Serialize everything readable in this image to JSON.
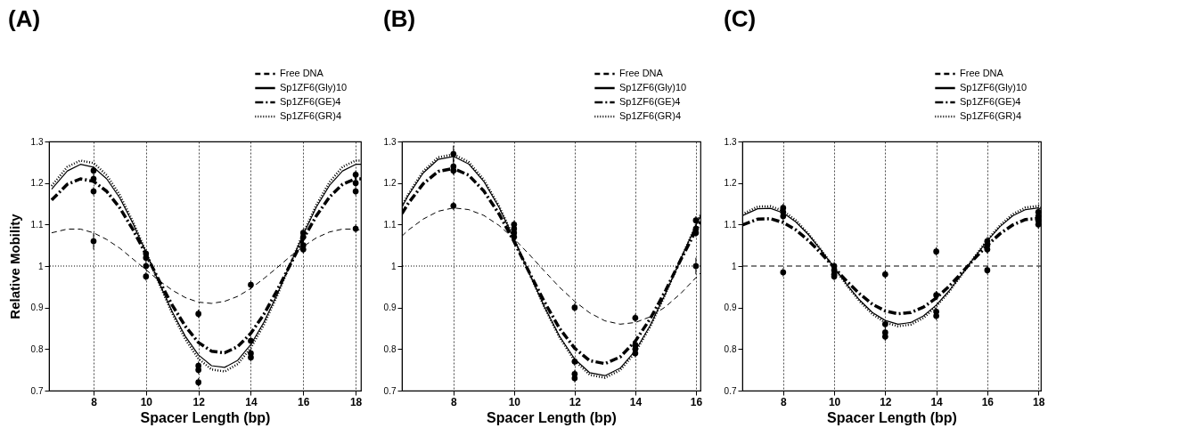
{
  "chart_data": [
    {
      "type": "scatter",
      "title": "(A)",
      "xlabel": "Spacer Length (bp)",
      "ylabel": "Relative Mobility",
      "xlim": [
        6.3,
        18.2
      ],
      "ylim": [
        0.7,
        1.3
      ],
      "xticks": [
        8,
        10,
        12,
        14,
        16,
        18
      ],
      "yticks": [
        0.7,
        0.8,
        0.9,
        1,
        1.1,
        1.2,
        1.3
      ],
      "grid": "x",
      "legend": "top right",
      "ref_lines": [
        {
          "axis": "y",
          "value": 1,
          "line_style": "dotted"
        }
      ],
      "series": [
        {
          "name": "Free DNA",
          "type": "scatter",
          "marker": "circle",
          "color": "#000000",
          "x": [
            8,
            10,
            12,
            14,
            16,
            18
          ],
          "values": [
            1.06,
            0.975,
            0.885,
            0.955,
            1.04,
            1.09
          ],
          "errors": [
            0.02,
            0.01,
            0.01,
            0.01,
            0.01,
            0.01
          ]
        },
        {
          "name": "Sp1ZF6(Gly)10",
          "type": "scatter",
          "marker": "circle",
          "color": "#000000",
          "x": [
            8,
            10,
            12,
            14,
            16,
            18
          ],
          "values": [
            1.23,
            1.03,
            0.75,
            0.82,
            1.07,
            1.22
          ],
          "errors": [
            0.01,
            0.01,
            0.01,
            0.01,
            0.01,
            0.01
          ]
        },
        {
          "name": "Sp1ZF6(GE)4",
          "type": "scatter",
          "marker": "circle",
          "color": "#000000",
          "x": [
            8,
            10,
            12,
            14,
            16,
            18
          ],
          "values": [
            1.21,
            1.02,
            0.72,
            0.79,
            1.05,
            1.2
          ],
          "errors": [
            0.01,
            0.01,
            0.01,
            0.01,
            0.01,
            0.01
          ]
        },
        {
          "name": "Sp1ZF6(GR)4",
          "type": "scatter",
          "marker": "circle",
          "color": "#000000",
          "x": [
            8,
            10,
            12,
            14,
            16,
            18
          ],
          "values": [
            1.18,
            1.0,
            0.76,
            0.78,
            1.08,
            1.18
          ],
          "errors": [
            0.01,
            0.01,
            0.01,
            0.01,
            0.01,
            0.01
          ]
        },
        {
          "type": "line",
          "marker": "none",
          "line_style": "dashed",
          "color": "#000000",
          "x": [
            6.4,
            7,
            7.5,
            8,
            8.5,
            9,
            9.5,
            10,
            10.5,
            11,
            11.5,
            12,
            12.5,
            13,
            13.5,
            14,
            14.5,
            15,
            15.5,
            16,
            16.5,
            17,
            17.5,
            18,
            18.2
          ],
          "values": [
            1.08,
            1.089,
            1.089,
            1.08,
            1.064,
            1.043,
            1.017,
            0.991,
            0.965,
            0.942,
            0.924,
            0.913,
            0.91,
            0.915,
            0.927,
            0.946,
            0.97,
            0.996,
            1.023,
            1.047,
            1.068,
            1.082,
            1.089,
            1.089,
            1.086
          ]
        },
        {
          "type": "line",
          "marker": "none",
          "line_style": "solid",
          "color": "#000000",
          "x": [
            6.4,
            7,
            7.5,
            8,
            8.5,
            9,
            9.5,
            10,
            10.5,
            11,
            11.5,
            12,
            12.5,
            13,
            13.5,
            14,
            14.5,
            15,
            15.5,
            16,
            16.5,
            17,
            17.5,
            18,
            18.2
          ],
          "values": [
            1.185,
            1.229,
            1.245,
            1.238,
            1.21,
            1.164,
            1.103,
            1.033,
            0.96,
            0.89,
            0.831,
            0.786,
            0.76,
            0.756,
            0.773,
            0.811,
            0.865,
            0.931,
            1.004,
            1.076,
            1.142,
            1.194,
            1.229,
            1.245,
            1.245
          ]
        },
        {
          "type": "line",
          "marker": "none",
          "line_style": "dashdot",
          "color": "#000000",
          "x": [
            6.4,
            7,
            7.5,
            8,
            8.5,
            9,
            9.5,
            10,
            10.5,
            11,
            11.5,
            12,
            12.5,
            13,
            13.5,
            14,
            14.5,
            15,
            15.5,
            16,
            16.5,
            17,
            17.5,
            18,
            18.2
          ],
          "values": [
            1.159,
            1.197,
            1.21,
            1.204,
            1.18,
            1.14,
            1.088,
            1.028,
            0.965,
            0.906,
            0.855,
            0.816,
            0.795,
            0.791,
            0.806,
            0.838,
            0.884,
            0.941,
            1.003,
            1.065,
            1.121,
            1.166,
            1.197,
            1.21,
            1.21
          ]
        },
        {
          "type": "line",
          "marker": "none",
          "line_style": "dotted",
          "color": "#000000",
          "x": [
            6.4,
            7,
            7.5,
            8,
            8.5,
            9,
            9.5,
            10,
            10.5,
            11,
            11.5,
            12,
            12.5,
            13,
            13.5,
            14,
            14.5,
            15,
            15.5,
            16,
            16.5,
            17,
            17.5,
            18,
            18.2
          ],
          "values": [
            1.193,
            1.239,
            1.254,
            1.248,
            1.219,
            1.171,
            1.107,
            1.034,
            0.958,
            0.886,
            0.824,
            0.777,
            0.751,
            0.746,
            0.764,
            0.803,
            0.859,
            0.928,
            1.004,
            1.079,
            1.147,
            1.202,
            1.239,
            1.254,
            1.254
          ]
        }
      ]
    },
    {
      "type": "scatter",
      "title": "(B)",
      "xlabel": "Spacer Length (bp)",
      "xlim": [
        6.3,
        16.15
      ],
      "ylim": [
        0.7,
        1.3
      ],
      "xticks": [
        8,
        10,
        12,
        14,
        16
      ],
      "yticks": [
        0.7,
        0.8,
        0.9,
        1,
        1.1,
        1.2,
        1.3
      ],
      "grid": "x",
      "legend": "top right",
      "ref_lines": [
        {
          "axis": "y",
          "value": 1,
          "line_style": "dotted"
        }
      ],
      "series": [
        {
          "name": "Free DNA",
          "type": "scatter",
          "marker": "circle",
          "color": "#000000",
          "x": [
            8,
            10,
            12,
            14,
            16
          ],
          "values": [
            1.145,
            1.07,
            0.9,
            0.875,
            1.0
          ],
          "errors": [
            0.01,
            0.01,
            0.01,
            0.01,
            0.02
          ]
        },
        {
          "name": "Sp1ZF6(Gly)10",
          "type": "scatter",
          "marker": "circle",
          "color": "#000000",
          "x": [
            8,
            10,
            12,
            14,
            16
          ],
          "values": [
            1.27,
            1.09,
            0.77,
            0.81,
            1.09
          ],
          "errors": [
            0.02,
            0.01,
            0.01,
            0.01,
            0.01
          ]
        },
        {
          "name": "Sp1ZF6(GE)4",
          "type": "scatter",
          "marker": "circle",
          "color": "#000000",
          "x": [
            8,
            10,
            12,
            14,
            16
          ],
          "values": [
            1.24,
            1.08,
            0.74,
            0.79,
            1.08
          ],
          "errors": [
            0.02,
            0.01,
            0.01,
            0.01,
            0.01
          ]
        },
        {
          "name": "Sp1ZF6(GR)4",
          "type": "scatter",
          "marker": "circle",
          "color": "#000000",
          "x": [
            8,
            10,
            12,
            14,
            16
          ],
          "values": [
            1.23,
            1.1,
            0.73,
            0.8,
            1.11
          ],
          "errors": [
            0.01,
            0.01,
            0.01,
            0.01,
            0.01
          ]
        },
        {
          "type": "line",
          "marker": "none",
          "line_style": "dashed",
          "color": "#000000",
          "x": [
            6.3,
            6.5,
            7,
            7.5,
            8,
            8.5,
            9,
            9.5,
            10,
            10.5,
            11,
            11.5,
            12,
            12.5,
            13,
            13.5,
            14,
            14.5,
            15,
            15.5,
            16,
            16.15
          ],
          "values": [
            1.072,
            1.086,
            1.113,
            1.132,
            1.14,
            1.136,
            1.122,
            1.098,
            1.066,
            1.028,
            0.988,
            0.949,
            0.915,
            0.887,
            0.868,
            0.86,
            0.864,
            0.878,
            0.902,
            0.934,
            0.972,
            0.983
          ]
        },
        {
          "type": "line",
          "marker": "none",
          "line_style": "solid",
          "color": "#000000",
          "x": [
            6.3,
            6.5,
            7,
            7.5,
            8,
            8.5,
            9,
            9.5,
            10,
            10.5,
            11,
            11.5,
            12,
            12.5,
            13,
            13.5,
            14,
            14.5,
            15,
            15.5,
            16,
            16.15
          ],
          "values": [
            1.142,
            1.169,
            1.224,
            1.257,
            1.264,
            1.246,
            1.204,
            1.142,
            1.066,
            0.983,
            0.902,
            0.831,
            0.776,
            0.743,
            0.736,
            0.754,
            0.796,
            0.858,
            0.934,
            1.017,
            1.098,
            1.12
          ]
        },
        {
          "type": "line",
          "marker": "none",
          "line_style": "dashdot",
          "color": "#000000",
          "x": [
            6.3,
            6.5,
            7,
            7.5,
            8,
            8.5,
            9,
            9.5,
            10,
            10.5,
            11,
            11.5,
            12,
            12.5,
            13,
            13.5,
            14,
            14.5,
            15,
            15.5,
            16,
            16.15
          ],
          "values": [
            1.126,
            1.15,
            1.198,
            1.228,
            1.235,
            1.219,
            1.181,
            1.126,
            1.059,
            0.985,
            0.914,
            0.85,
            0.802,
            0.772,
            0.765,
            0.781,
            0.819,
            0.874,
            0.941,
            1.015,
            1.086,
            1.107
          ]
        },
        {
          "type": "line",
          "marker": "none",
          "line_style": "dotted",
          "color": "#000000",
          "x": [
            6.3,
            6.5,
            7,
            7.5,
            8,
            8.5,
            9,
            9.5,
            10,
            10.5,
            11,
            11.5,
            12,
            12.5,
            13,
            13.5,
            14,
            14.5,
            15,
            15.5,
            16,
            16.15
          ],
          "values": [
            1.145,
            1.172,
            1.228,
            1.262,
            1.269,
            1.251,
            1.208,
            1.145,
            1.067,
            0.983,
            0.901,
            0.828,
            0.772,
            0.738,
            0.731,
            0.749,
            0.792,
            0.855,
            0.933,
            1.017,
            1.099,
            1.123
          ]
        }
      ]
    },
    {
      "type": "scatter",
      "title": "(C)",
      "xlabel": "Spacer Length (bp)",
      "xlim": [
        6.4,
        18.1
      ],
      "ylim": [
        0.7,
        1.3
      ],
      "xticks": [
        8,
        10,
        12,
        14,
        16,
        18
      ],
      "yticks": [
        0.7,
        0.8,
        0.9,
        1,
        1.1,
        1.2,
        1.3
      ],
      "grid": "x",
      "legend": "top right",
      "series": [
        {
          "name": "Free DNA",
          "type": "scatter",
          "marker": "circle",
          "color": "#000000",
          "x": [
            8,
            10,
            12,
            14,
            16,
            18
          ],
          "values": [
            0.985,
            0.975,
            0.98,
            1.035,
            0.99,
            1.1
          ],
          "errors": [
            0.01,
            0.01,
            0.01,
            0.01,
            0.01,
            0.01
          ]
        },
        {
          "name": "Sp1ZF6(Gly)10",
          "type": "scatter",
          "marker": "circle",
          "color": "#000000",
          "x": [
            8,
            10,
            12,
            14,
            16,
            18
          ],
          "values": [
            1.13,
            1.0,
            0.84,
            0.89,
            1.06,
            1.12
          ],
          "errors": [
            0.01,
            0.01,
            0.01,
            0.01,
            0.01,
            0.01
          ]
        },
        {
          "name": "Sp1ZF6(GE)4",
          "type": "scatter",
          "marker": "circle",
          "color": "#000000",
          "x": [
            8,
            10,
            12,
            14,
            16,
            18
          ],
          "values": [
            1.12,
            0.99,
            0.83,
            0.88,
            1.05,
            1.11
          ],
          "errors": [
            0.01,
            0.01,
            0.01,
            0.01,
            0.01,
            0.01
          ]
        },
        {
          "name": "Sp1ZF6(GR)4",
          "type": "scatter",
          "marker": "circle",
          "color": "#000000",
          "x": [
            8,
            10,
            12,
            14,
            16,
            18
          ],
          "values": [
            1.14,
            0.98,
            0.86,
            0.93,
            1.04,
            1.13
          ],
          "errors": [
            0.01,
            0.01,
            0.01,
            0.01,
            0.01,
            0.01
          ]
        },
        {
          "type": "line",
          "marker": "none",
          "line_style": "dashed",
          "color": "#000000",
          "x": [
            6.4,
            18.1
          ],
          "values": [
            1.0,
            1.0
          ]
        },
        {
          "type": "line",
          "marker": "none",
          "line_style": "solid",
          "color": "#000000",
          "x": [
            6.4,
            7,
            7.5,
            8,
            8.5,
            9,
            9.5,
            10,
            10.5,
            11,
            11.5,
            12,
            12.5,
            13,
            13.5,
            14,
            14.5,
            15,
            15.5,
            16,
            16.5,
            17,
            17.5,
            18,
            18.1
          ],
          "values": [
            1.121,
            1.138,
            1.139,
            1.128,
            1.106,
            1.075,
            1.037,
            0.996,
            0.955,
            0.918,
            0.888,
            0.869,
            0.86,
            0.864,
            0.88,
            0.906,
            0.94,
            0.98,
            1.021,
            1.061,
            1.095,
            1.121,
            1.136,
            1.14,
            1.137
          ]
        },
        {
          "type": "line",
          "marker": "none",
          "line_style": "dashdot",
          "color": "#000000",
          "x": [
            6.4,
            7,
            7.5,
            8,
            8.5,
            9,
            9.5,
            10,
            10.5,
            11,
            11.5,
            12,
            12.5,
            13,
            13.5,
            14,
            14.5,
            15,
            15.5,
            16,
            16.5,
            17,
            17.5,
            18,
            18.1
          ],
          "values": [
            1.099,
            1.113,
            1.114,
            1.105,
            1.087,
            1.061,
            1.03,
            0.996,
            0.963,
            0.933,
            0.908,
            0.892,
            0.885,
            0.888,
            0.901,
            0.923,
            0.951,
            0.984,
            1.018,
            1.05,
            1.078,
            1.099,
            1.112,
            1.115,
            1.112
          ]
        },
        {
          "type": "line",
          "marker": "none",
          "line_style": "dotted",
          "color": "#000000",
          "x": [
            6.4,
            7,
            7.5,
            8,
            8.5,
            9,
            9.5,
            10,
            10.5,
            11,
            11.5,
            12,
            12.5,
            13,
            13.5,
            14,
            14.5,
            15,
            15.5,
            16,
            16.5,
            17,
            17.5,
            18,
            18.1
          ],
          "values": [
            1.125,
            1.143,
            1.144,
            1.133,
            1.11,
            1.077,
            1.038,
            0.996,
            0.953,
            0.915,
            0.884,
            0.864,
            0.855,
            0.859,
            0.875,
            0.903,
            0.938,
            0.979,
            1.022,
            1.063,
            1.098,
            1.125,
            1.141,
            1.145,
            1.141
          ]
        }
      ]
    }
  ]
}
